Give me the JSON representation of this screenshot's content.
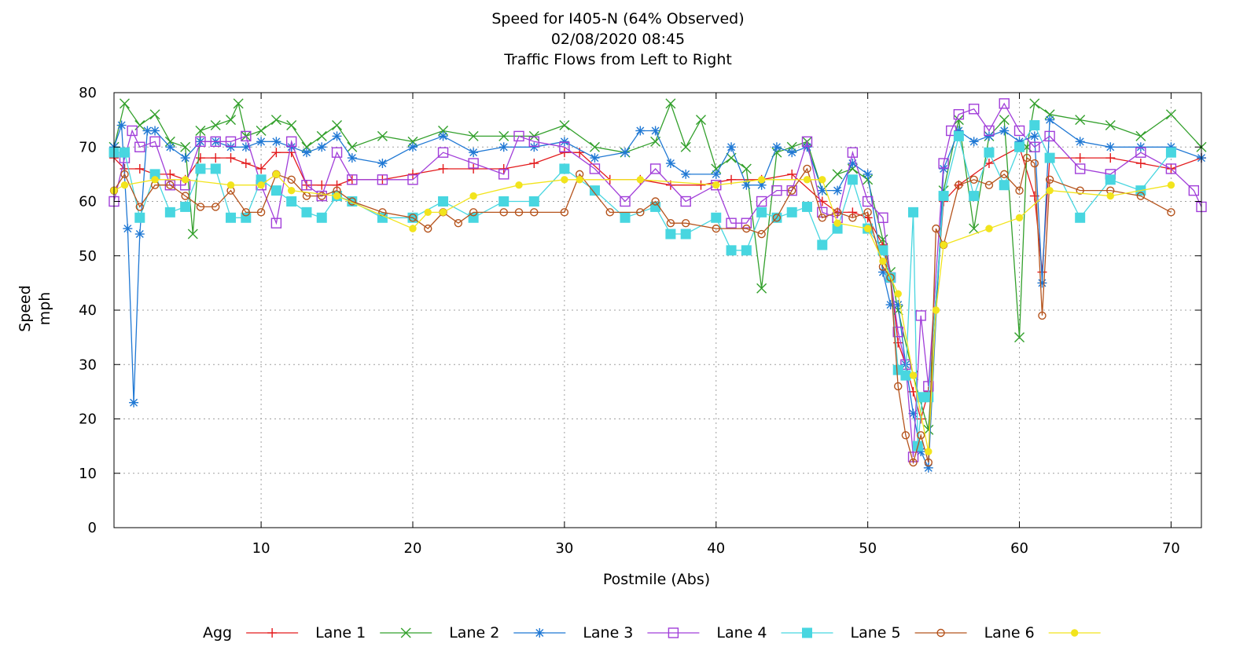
{
  "chart_data": {
    "type": "line",
    "title": "Speed for I405-N (64% Observed)",
    "subtitle": "02/08/2020 08:45",
    "subtitle2": "Traffic Flows from Left to Right",
    "xlabel": "Postmile (Abs)",
    "ylabel_line1": "Speed",
    "ylabel_line2": "mph",
    "xlim": [
      0.3,
      72.0
    ],
    "ylim": [
      0,
      80
    ],
    "xticks": [
      10,
      20,
      30,
      40,
      50,
      60,
      70
    ],
    "yticks": [
      0,
      10,
      20,
      30,
      40,
      50,
      60,
      70,
      80
    ],
    "grid": true,
    "legend_position": "bottom",
    "series": [
      {
        "name": "Agg",
        "color": "#e31a1c",
        "marker": "plus",
        "x": [
          0.3,
          1,
          2,
          3,
          4,
          5,
          6,
          7,
          8,
          9,
          10,
          11,
          12,
          13,
          14,
          15,
          16,
          18,
          20,
          22,
          24,
          26,
          28,
          30,
          31,
          33,
          35,
          37,
          39,
          41,
          43,
          45,
          47,
          48,
          49,
          50,
          51,
          51.5,
          52,
          52.5,
          53,
          53.5,
          54,
          55,
          56,
          58,
          60,
          61,
          61.5,
          62,
          64,
          66,
          68,
          70,
          72
        ],
        "y": [
          68,
          66,
          66,
          65,
          65,
          64,
          68,
          68,
          68,
          67,
          66,
          69,
          69,
          63,
          63,
          63,
          64,
          64,
          65,
          66,
          66,
          66,
          67,
          69,
          69,
          64,
          64,
          63,
          63,
          64,
          64,
          65,
          60,
          58,
          58,
          57,
          52,
          46,
          34,
          30,
          25,
          20,
          25,
          60,
          63,
          67,
          70,
          61,
          47,
          68,
          68,
          68,
          67,
          66,
          68
        ]
      },
      {
        "name": "Lane 1",
        "color": "#33a02c",
        "marker": "cross",
        "x": [
          0.3,
          1,
          2,
          3,
          4,
          5,
          5.5,
          6,
          7,
          8,
          8.5,
          9,
          10,
          11,
          12,
          13,
          14,
          15,
          16,
          18,
          20,
          22,
          24,
          26,
          28,
          30,
          32,
          34,
          36,
          37,
          38,
          39,
          40,
          41,
          42,
          43,
          44,
          45,
          46,
          47,
          48,
          49,
          50,
          51,
          51.5,
          52,
          53,
          54,
          55,
          56,
          57,
          58,
          59,
          60,
          60.5,
          61,
          62,
          64,
          66,
          68,
          70,
          72
        ],
        "y": [
          70,
          78,
          74,
          76,
          71,
          70,
          54,
          73,
          74,
          75,
          78,
          72,
          73,
          75,
          74,
          70,
          72,
          74,
          70,
          72,
          71,
          73,
          72,
          72,
          72,
          74,
          70,
          69,
          71,
          78,
          70,
          75,
          66,
          68,
          66,
          44,
          69,
          70,
          71,
          62,
          65,
          66,
          64,
          53,
          47,
          40,
          28,
          18,
          62,
          75,
          55,
          72,
          75,
          35,
          70,
          78,
          76,
          75,
          74,
          72,
          76,
          70
        ]
      },
      {
        "name": "Lane 2",
        "color": "#1f78d4",
        "marker": "star",
        "x": [
          0.3,
          0.8,
          1.2,
          1.6,
          2,
          2.5,
          3,
          4,
          5,
          6,
          7,
          8,
          9,
          10,
          11,
          12,
          13,
          14,
          15,
          16,
          18,
          20,
          22,
          24,
          26,
          28,
          30,
          32,
          34,
          35,
          36,
          37,
          38,
          40,
          41,
          42,
          43,
          44,
          45,
          46,
          47,
          48,
          49,
          50,
          51,
          51.5,
          52,
          52.5,
          53,
          53.5,
          54,
          55,
          56,
          57,
          58,
          59,
          60,
          61,
          61.5,
          62,
          64,
          66,
          68,
          70,
          72
        ],
        "y": [
          70,
          74,
          55,
          23,
          54,
          73,
          73,
          70,
          68,
          71,
          71,
          70,
          70,
          71,
          71,
          70,
          69,
          70,
          72,
          68,
          67,
          70,
          72,
          69,
          70,
          70,
          71,
          68,
          69,
          73,
          73,
          67,
          65,
          65,
          70,
          63,
          63,
          70,
          69,
          70,
          62,
          62,
          67,
          65,
          47,
          41,
          41,
          30,
          21,
          14,
          11,
          66,
          73,
          71,
          72,
          73,
          71,
          72,
          45,
          75,
          71,
          70,
          70,
          70,
          68
        ]
      },
      {
        "name": "Lane 3",
        "color": "#a13ed9",
        "marker": "square",
        "x": [
          0.3,
          1,
          1.5,
          2,
          3,
          4,
          5,
          6,
          7,
          8,
          9,
          10,
          11,
          12,
          13,
          14,
          15,
          16,
          18,
          20,
          22,
          24,
          26,
          27,
          28,
          30,
          32,
          34,
          36,
          38,
          40,
          41,
          42,
          43,
          44,
          45,
          46,
          47,
          48,
          49,
          50,
          51,
          51.5,
          52,
          52.5,
          53,
          53.5,
          54,
          55,
          55.5,
          56,
          57,
          58,
          59,
          60,
          61,
          62,
          64,
          66,
          68,
          70,
          71.5,
          72
        ],
        "y": [
          60,
          68,
          73,
          70,
          71,
          63,
          63,
          71,
          71,
          71,
          72,
          63,
          56,
          71,
          63,
          61,
          69,
          64,
          64,
          64,
          69,
          67,
          65,
          72,
          71,
          70,
          66,
          60,
          66,
          60,
          63,
          56,
          56,
          60,
          62,
          62,
          71,
          58,
          57,
          69,
          60,
          57,
          46,
          36,
          30,
          13,
          39,
          26,
          67,
          73,
          76,
          77,
          73,
          78,
          73,
          70,
          72,
          66,
          65,
          69,
          66,
          62,
          59
        ]
      },
      {
        "name": "Lane 4",
        "color": "#48d6e0",
        "marker": "filled-square",
        "x": [
          0.3,
          1,
          2,
          3,
          4,
          5,
          6,
          7,
          8,
          9,
          10,
          11,
          12,
          13,
          14,
          15,
          16,
          18,
          20,
          22,
          24,
          26,
          28,
          30,
          32,
          34,
          36,
          37,
          38,
          40,
          41,
          42,
          43,
          44,
          45,
          46,
          47,
          48,
          49,
          50,
          51,
          51.5,
          52,
          52.5,
          53,
          53.3,
          53.6,
          54,
          55,
          56,
          57,
          58,
          59,
          60,
          61,
          62,
          64,
          66,
          68,
          70
        ],
        "y": [
          69,
          69,
          57,
          65,
          58,
          59,
          66,
          66,
          57,
          57,
          64,
          62,
          60,
          58,
          57,
          61,
          60,
          57,
          57,
          60,
          57,
          60,
          60,
          66,
          62,
          57,
          59,
          54,
          54,
          57,
          51,
          51,
          58,
          57,
          58,
          59,
          52,
          55,
          64,
          55,
          51,
          46,
          29,
          28,
          58,
          15,
          24,
          24,
          61,
          72,
          61,
          69,
          63,
          70,
          74,
          68,
          57,
          64,
          62,
          69
        ]
      },
      {
        "name": "Lane 5",
        "color": "#b5531c",
        "marker": "circle",
        "x": [
          0.3,
          1,
          2,
          3,
          4,
          5,
          6,
          7,
          8,
          9,
          10,
          11,
          12,
          13,
          14,
          15,
          16,
          18,
          20,
          21,
          22,
          23,
          24,
          26,
          27,
          28,
          30,
          31,
          33,
          35,
          36,
          37,
          38,
          40,
          42,
          43,
          44,
          45,
          46,
          47,
          48,
          49,
          50,
          51,
          51.5,
          52,
          52.5,
          53,
          53.5,
          54,
          54.5,
          55,
          56,
          57,
          58,
          59,
          60,
          60.5,
          61,
          61.5,
          62,
          64,
          66,
          68,
          70
        ],
        "y": [
          62,
          65,
          59,
          63,
          63,
          61,
          59,
          59,
          62,
          58,
          58,
          65,
          64,
          61,
          61,
          62,
          60,
          58,
          57,
          55,
          58,
          56,
          58,
          58,
          58,
          58,
          58,
          65,
          58,
          58,
          60,
          56,
          56,
          55,
          55,
          54,
          57,
          62,
          66,
          57,
          58,
          57,
          58,
          48,
          46,
          26,
          17,
          12,
          17,
          12,
          55,
          52,
          63,
          64,
          63,
          65,
          62,
          68,
          67,
          39,
          64,
          62,
          62,
          61,
          58
        ]
      },
      {
        "name": "Lane 6",
        "color": "#f2e41d",
        "marker": "filled-circle",
        "x": [
          0.3,
          1,
          3,
          5,
          8,
          10,
          11,
          12,
          15,
          20,
          21,
          22,
          24,
          27,
          30,
          31,
          35,
          40,
          43,
          46,
          47,
          48,
          50,
          51,
          52,
          53,
          54,
          54.5,
          55,
          58,
          60,
          62,
          66,
          70
        ],
        "y": [
          62,
          63,
          64,
          64,
          63,
          63,
          65,
          62,
          61,
          55,
          58,
          58,
          61,
          63,
          64,
          64,
          64,
          63,
          64,
          64,
          64,
          56,
          55,
          49,
          43,
          28,
          14,
          40,
          52,
          55,
          57,
          62,
          61,
          63
        ]
      }
    ]
  }
}
